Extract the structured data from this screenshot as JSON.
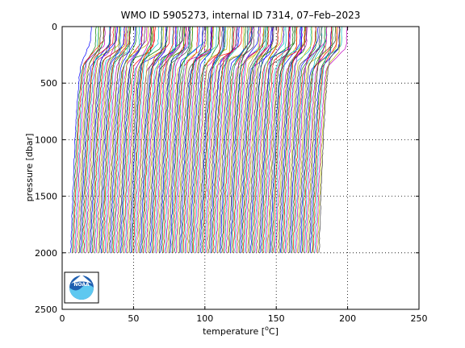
{
  "chart_data": {
    "type": "line",
    "title": "WMO ID 5905273, internal ID 7314, 07–Feb–2023",
    "xlabel_prefix": "temperature [",
    "xlabel_unit_sup": "o",
    "xlabel_unit_suffix": "C]",
    "ylabel": "pressure [dbar]",
    "xlim": [
      0,
      250
    ],
    "ylim": [
      2500,
      0
    ],
    "y_reversed": true,
    "grid": true,
    "xticks": [
      "0",
      "50",
      "100",
      "150",
      "200",
      "250"
    ],
    "yticks": [
      "0",
      "500",
      "1000",
      "1500",
      "2000",
      "2500"
    ],
    "offset_profiles": {
      "count": 175,
      "offset_step": 1.0,
      "surface_temperature_range": [
        20,
        28
      ],
      "mixed_layer_pressure": 200,
      "thermocline_bottom_pressure": 300,
      "max_pressure": 2000,
      "deep_temperature": 6,
      "color_cycle": [
        "#0000ff",
        "#008000",
        "#ff0000",
        "#00bfbf",
        "#bf00bf",
        "#bfbf00",
        "#404040"
      ]
    }
  },
  "logo": {
    "name": "noaa-logo-icon",
    "text": "NOAA"
  }
}
